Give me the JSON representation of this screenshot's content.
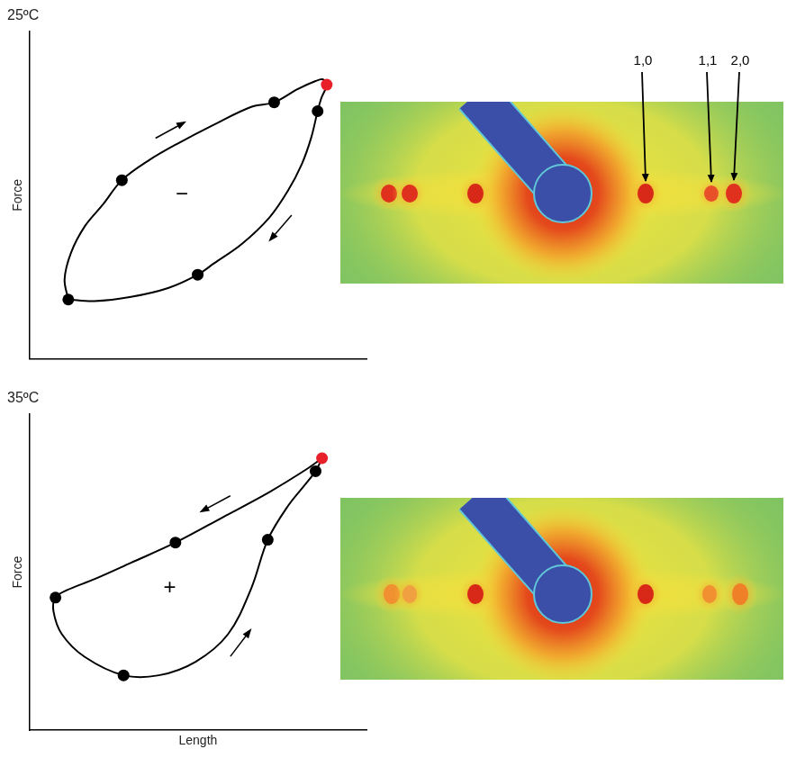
{
  "chart_data": [
    {
      "type": "line",
      "title": "25ºC",
      "y_label": "Force",
      "xlim": [
        0,
        100
      ],
      "ylim": [
        0,
        100
      ],
      "tick_labels": false,
      "grid": false,
      "series": [
        {
          "type": "line",
          "color": "#000000",
          "line_style": "solid",
          "marker": "none",
          "x": [
            11.5,
            10.4,
            12.3,
            16.4,
            21.9,
            27.4,
            35.6,
            43.8,
            54.8,
            65.8,
            72.6,
            79.5,
            84.9,
            87.1,
            88.2,
            86.6,
            85.5,
            83.6,
            80.8,
            76.7,
            71.2,
            63.0,
            54.8,
            49.9,
            41.1,
            30.1,
            19.2,
            11.5
          ],
          "values": [
            18.1,
            24.3,
            32.4,
            40.5,
            47.3,
            54.6,
            60.8,
            65.7,
            71.6,
            77.0,
            78.4,
            82.4,
            84.9,
            85.4,
            83.8,
            79.7,
            75.7,
            67.6,
            59.5,
            51.4,
            43.2,
            35.1,
            29.2,
            25.7,
            21.6,
            18.9,
            17.6,
            18.1
          ]
        },
        {
          "type": "scatter",
          "color": "#000000",
          "marker": "circle",
          "x": [
            27.4,
            72.6,
            85.5,
            49.9,
            11.5
          ],
          "values": [
            54.6,
            78.4,
            75.7,
            25.7,
            18.1
          ]
        },
        {
          "type": "scatter",
          "color": "#e8202a",
          "marker": "circle",
          "x": [
            88.2
          ],
          "values": [
            83.8
          ]
        }
      ],
      "annotations": [
        {
          "text": "−",
          "x": 45.2,
          "y": 50.0
        }
      ]
    },
    {
      "type": "line",
      "title": "35ºC",
      "y_label": "Force",
      "x_label": "Length",
      "xlim": [
        0,
        100
      ],
      "ylim": [
        0,
        100
      ],
      "tick_labels": false,
      "grid": false,
      "series": [
        {
          "type": "line",
          "color": "#000000",
          "line_style": "solid",
          "marker": "none",
          "x": [
            86.8,
            82.2,
            71.2,
            57.5,
            43.3,
            30.1,
            19.2,
            11.0,
            7.7,
            7.1,
            9.6,
            16.4,
            27.9,
            38.4,
            49.3,
            58.9,
            65.8,
            70.7,
            76.7,
            82.2,
            84.9,
            86.3,
            86.8
          ],
          "values": [
            86.1,
            82.6,
            75.4,
            67.5,
            59.4,
            53.0,
            47.8,
            44.3,
            42.0,
            37.7,
            30.4,
            23.2,
            17.4,
            17.4,
            21.7,
            30.4,
            44.9,
            60.3,
            71.0,
            78.3,
            82.0,
            84.9,
            86.1
          ]
        },
        {
          "type": "scatter",
          "color": "#000000",
          "marker": "circle",
          "x": [
            84.9,
            70.7,
            27.9,
            7.7,
            43.3
          ],
          "values": [
            82.0,
            60.3,
            17.4,
            42.0,
            59.4
          ]
        },
        {
          "type": "scatter",
          "color": "#e8202a",
          "marker": "circle",
          "x": [
            86.8
          ],
          "values": [
            86.1
          ]
        }
      ],
      "annotations": [
        {
          "text": "+",
          "x": 41.6,
          "y": 44.9
        }
      ]
    }
  ],
  "diffraction": {
    "reflection_labels": [
      "1,0",
      "1,1",
      "2,0"
    ]
  }
}
